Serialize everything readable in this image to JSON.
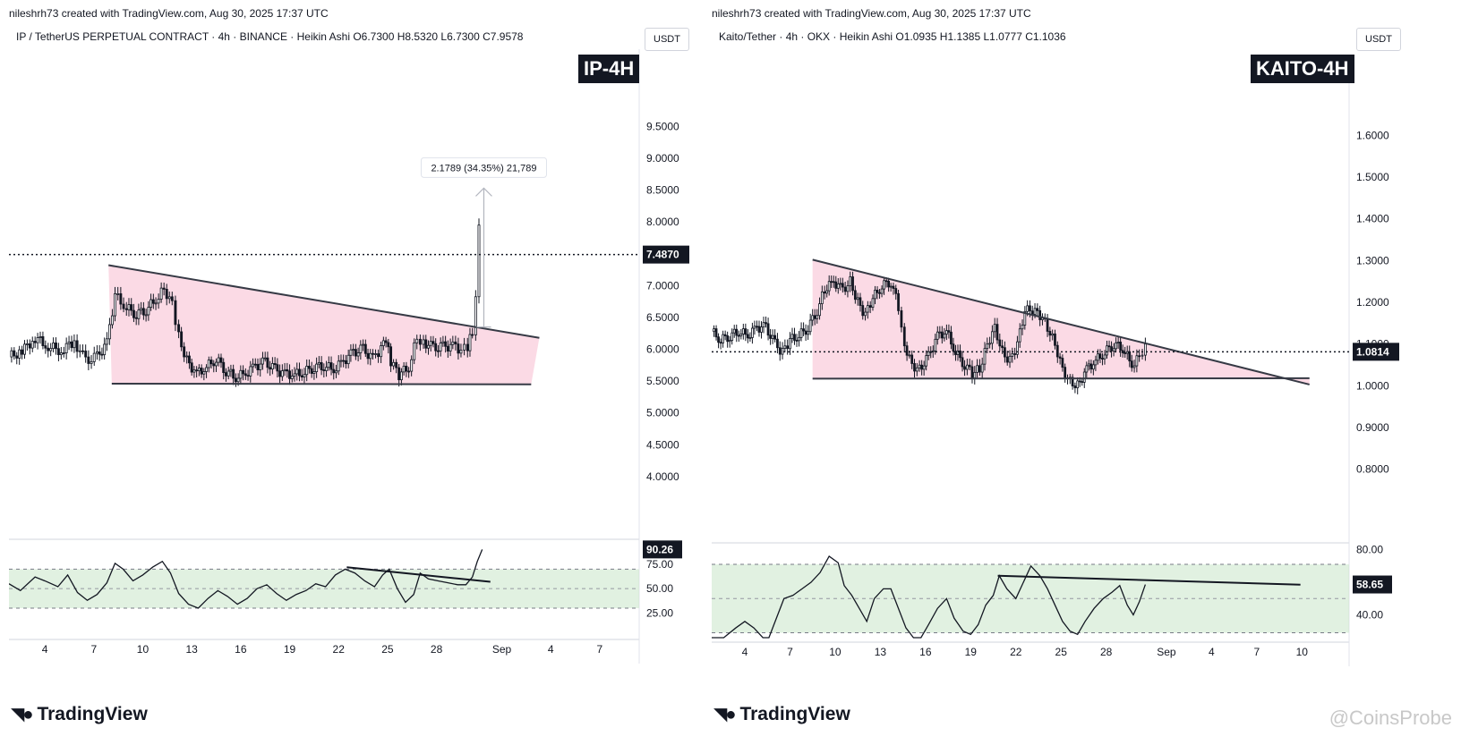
{
  "left": {
    "credit": "nileshrh73 created with TradingView.com, Aug 30, 2025 17:37 UTC",
    "legend": "IP / TetherUS PERPETUAL CONTRACT · 4h · BINANCE · Heikin Ashi  O6.7300  H8.5320  L6.7300  C7.9578",
    "currency": "USDT",
    "badge": "IP-4H",
    "logo": "TradingView"
  },
  "right": {
    "credit": "nileshrh73 created with TradingView.com, Aug 30, 2025 17:37 UTC",
    "legend": "Kaito/Tether · 4h · OKX · Heikin Ashi  O1.0935  H1.1385  L1.0777  C1.1036",
    "currency": "USDT",
    "badge": "KAITO-4H",
    "logo": "TradingView"
  },
  "watermark": "@CoinsProbe",
  "chart_data": [
    {
      "type": "candlestick",
      "symbol": "IP / TetherUS PERPETUAL CONTRACT",
      "timeframe": "4h",
      "exchange": "BINANCE",
      "candle_style": "Heikin Ashi",
      "ohlc": {
        "open": "6.7300",
        "high": "8.5320",
        "low": "6.7300",
        "close": "7.9578"
      },
      "y_ticks": [
        "9.5000",
        "9.0000",
        "8.5000",
        "8.0000",
        "7.5000",
        "7.0000",
        "6.5000",
        "6.0000",
        "5.5000",
        "5.0000",
        "4.5000",
        "4.0000"
      ],
      "y_tick_values": [
        9.5,
        9.0,
        8.5,
        8.0,
        7.5,
        7.0,
        6.5,
        6.0,
        5.5,
        5.0,
        4.5,
        4.0
      ],
      "ylim": [
        3.55,
        10.15
      ],
      "x_ticks": [
        "4",
        "7",
        "10",
        "13",
        "16",
        "19",
        "22",
        "25",
        "28",
        "Sep",
        "4",
        "7"
      ],
      "x_tick_days": [
        4,
        7,
        10,
        13,
        16,
        19,
        22,
        25,
        28,
        32,
        35,
        38
      ],
      "xlim": [
        1.8,
        40.2
      ],
      "price_line": {
        "value": 7.487,
        "label": "7.4870"
      },
      "measure": {
        "label": "2.1789 (34.35%) 21,789",
        "from": 6.35,
        "to": 8.53,
        "day": 30.9
      },
      "pattern": {
        "upper_line": [
          [
            7.9,
            7.32
          ],
          [
            34.3,
            6.18
          ]
        ],
        "lower_line": [
          [
            8.1,
            5.46
          ],
          [
            33.8,
            5.45
          ]
        ]
      },
      "price_series": [
        [
          1.8,
          5.88
        ],
        [
          2.6,
          5.97
        ],
        [
          3.4,
          6.18
        ],
        [
          4.2,
          6.05
        ],
        [
          5.0,
          5.98
        ],
        [
          5.8,
          6.12
        ],
        [
          6.5,
          5.82
        ],
        [
          7.2,
          5.88
        ],
        [
          7.8,
          6.1
        ],
        [
          8.3,
          6.85
        ],
        [
          9.0,
          6.65
        ],
        [
          9.6,
          6.55
        ],
        [
          10.2,
          6.62
        ],
        [
          10.8,
          6.78
        ],
        [
          11.3,
          6.95
        ],
        [
          11.8,
          6.72
        ],
        [
          12.2,
          6.2
        ],
        [
          12.7,
          5.82
        ],
        [
          13.3,
          5.62
        ],
        [
          13.9,
          5.72
        ],
        [
          14.5,
          5.85
        ],
        [
          15.1,
          5.66
        ],
        [
          15.7,
          5.56
        ],
        [
          16.3,
          5.62
        ],
        [
          16.9,
          5.74
        ],
        [
          17.5,
          5.8
        ],
        [
          18.1,
          5.68
        ],
        [
          18.7,
          5.62
        ],
        [
          19.3,
          5.6
        ],
        [
          19.9,
          5.64
        ],
        [
          20.5,
          5.72
        ],
        [
          21.1,
          5.74
        ],
        [
          21.7,
          5.68
        ],
        [
          22.3,
          5.82
        ],
        [
          22.9,
          5.95
        ],
        [
          23.5,
          6.0
        ],
        [
          24.1,
          5.85
        ],
        [
          24.6,
          6.02
        ],
        [
          24.9,
          6.12
        ],
        [
          25.2,
          5.8
        ],
        [
          25.7,
          5.6
        ],
        [
          26.3,
          5.72
        ],
        [
          26.8,
          6.18
        ],
        [
          27.2,
          6.12
        ],
        [
          27.8,
          6.02
        ],
        [
          28.4,
          6.04
        ],
        [
          29.0,
          6.06
        ],
        [
          29.5,
          5.98
        ],
        [
          29.9,
          6.02
        ],
        [
          30.2,
          6.3
        ],
        [
          30.4,
          6.9
        ],
        [
          30.6,
          7.95
        ]
      ],
      "indicator": {
        "labels": [
          "75.00",
          "50.00",
          "25.00"
        ],
        "levels": [
          75,
          50,
          25
        ],
        "upper_band": 70,
        "lower_band": 30,
        "ylim": [
          7,
          97
        ],
        "value_label": "90.26",
        "trendline": [
          [
            22.5,
            72
          ],
          [
            31.3,
            57
          ]
        ],
        "series": [
          [
            1.8,
            55
          ],
          [
            2.5,
            48
          ],
          [
            3.4,
            62
          ],
          [
            4.0,
            58
          ],
          [
            4.8,
            52
          ],
          [
            5.4,
            64
          ],
          [
            6.0,
            46
          ],
          [
            6.6,
            38
          ],
          [
            7.2,
            44
          ],
          [
            7.8,
            56
          ],
          [
            8.3,
            76
          ],
          [
            8.8,
            70
          ],
          [
            9.4,
            58
          ],
          [
            10.0,
            64
          ],
          [
            10.6,
            72
          ],
          [
            11.2,
            78
          ],
          [
            11.7,
            66
          ],
          [
            12.2,
            45
          ],
          [
            12.8,
            34
          ],
          [
            13.4,
            30
          ],
          [
            14.0,
            40
          ],
          [
            14.6,
            48
          ],
          [
            15.2,
            42
          ],
          [
            15.8,
            34
          ],
          [
            16.4,
            40
          ],
          [
            17.0,
            50
          ],
          [
            17.6,
            54
          ],
          [
            18.2,
            45
          ],
          [
            18.8,
            38
          ],
          [
            19.4,
            44
          ],
          [
            20.0,
            48
          ],
          [
            20.6,
            55
          ],
          [
            21.2,
            52
          ],
          [
            21.8,
            64
          ],
          [
            22.4,
            70
          ],
          [
            23.0,
            66
          ],
          [
            23.6,
            58
          ],
          [
            24.2,
            52
          ],
          [
            24.7,
            64
          ],
          [
            25.1,
            70
          ],
          [
            25.6,
            50
          ],
          [
            26.1,
            36
          ],
          [
            26.6,
            44
          ],
          [
            27.0,
            66
          ],
          [
            27.5,
            60
          ],
          [
            28.1,
            58
          ],
          [
            28.7,
            56
          ],
          [
            29.3,
            54
          ],
          [
            29.8,
            54
          ],
          [
            30.2,
            62
          ],
          [
            30.5,
            78
          ],
          [
            30.8,
            90.26
          ]
        ]
      }
    },
    {
      "type": "candlestick",
      "symbol": "Kaito/Tether",
      "timeframe": "4h",
      "exchange": "OKX",
      "candle_style": "Heikin Ashi",
      "ohlc": {
        "open": "1.0935",
        "high": "1.1385",
        "low": "1.0777",
        "close": "1.1036"
      },
      "y_ticks": [
        "1.6000",
        "1.5000",
        "1.4000",
        "1.3000",
        "1.2000",
        "1.1000",
        "1.0000",
        "0.9000",
        "0.8000"
      ],
      "y_tick_values": [
        1.6,
        1.5,
        1.4,
        1.3,
        1.2,
        1.1,
        1.0,
        0.9,
        0.8
      ],
      "ylim": [
        0.72,
        1.695
      ],
      "x_ticks": [
        "4",
        "7",
        "10",
        "13",
        "16",
        "19",
        "22",
        "25",
        "28",
        "Sep",
        "4",
        "7",
        "10"
      ],
      "x_tick_days": [
        4,
        7,
        10,
        13,
        16,
        19,
        22,
        25,
        28,
        32,
        35,
        38,
        41
      ],
      "xlim": [
        1.8,
        43.3
      ],
      "price_line": {
        "value": 1.0814,
        "label": "1.0814"
      },
      "pattern": {
        "upper_line": [
          [
            8.5,
            1.302
          ],
          [
            41.5,
            1.003
          ]
        ],
        "lower_line": [
          [
            8.5,
            1.017
          ],
          [
            41.5,
            1.018
          ]
        ]
      },
      "price_series": [
        [
          1.8,
          1.13
        ],
        [
          2.4,
          1.11
        ],
        [
          3.0,
          1.12
        ],
        [
          3.6,
          1.13
        ],
        [
          4.2,
          1.12
        ],
        [
          4.8,
          1.14
        ],
        [
          5.4,
          1.14
        ],
        [
          6.0,
          1.1
        ],
        [
          6.5,
          1.08
        ],
        [
          7.0,
          1.11
        ],
        [
          7.6,
          1.12
        ],
        [
          8.2,
          1.14
        ],
        [
          8.8,
          1.18
        ],
        [
          9.3,
          1.23
        ],
        [
          9.9,
          1.25
        ],
        [
          10.5,
          1.23
        ],
        [
          11.0,
          1.25
        ],
        [
          11.5,
          1.2
        ],
        [
          12.0,
          1.17
        ],
        [
          12.5,
          1.21
        ],
        [
          13.1,
          1.24
        ],
        [
          13.7,
          1.25
        ],
        [
          14.2,
          1.19
        ],
        [
          14.6,
          1.1
        ],
        [
          15.1,
          1.05
        ],
        [
          15.6,
          1.04
        ],
        [
          16.2,
          1.07
        ],
        [
          16.8,
          1.12
        ],
        [
          17.4,
          1.13
        ],
        [
          18.0,
          1.08
        ],
        [
          18.6,
          1.05
        ],
        [
          19.1,
          1.03
        ],
        [
          19.6,
          1.04
        ],
        [
          20.1,
          1.1
        ],
        [
          20.6,
          1.14
        ],
        [
          21.1,
          1.08
        ],
        [
          21.6,
          1.06
        ],
        [
          22.1,
          1.1
        ],
        [
          22.6,
          1.18
        ],
        [
          23.1,
          1.18
        ],
        [
          23.6,
          1.17
        ],
        [
          24.1,
          1.14
        ],
        [
          24.6,
          1.1
        ],
        [
          25.1,
          1.04
        ],
        [
          25.6,
          1.01
        ],
        [
          26.1,
          1.0
        ],
        [
          26.7,
          1.04
        ],
        [
          27.3,
          1.06
        ],
        [
          27.9,
          1.08
        ],
        [
          28.5,
          1.1
        ],
        [
          29.1,
          1.09
        ],
        [
          29.7,
          1.05
        ],
        [
          30.2,
          1.07
        ],
        [
          30.6,
          1.1
        ]
      ],
      "indicator": {
        "labels": [
          "80.00",
          "40.00"
        ],
        "levels": [
          80,
          40
        ],
        "upper_band": 71,
        "lower_band": 29,
        "midline": 50,
        "ylim": [
          26,
          82
        ],
        "value_label": "58.65",
        "trendline": [
          [
            20.8,
            64
          ],
          [
            40.9,
            58.5
          ]
        ],
        "series": [
          [
            1.8,
            22
          ],
          [
            2.6,
            26
          ],
          [
            3.4,
            32
          ],
          [
            4.0,
            36
          ],
          [
            4.6,
            32
          ],
          [
            5.2,
            26
          ],
          [
            5.6,
            22
          ],
          [
            6.1,
            38
          ],
          [
            6.6,
            50
          ],
          [
            7.2,
            52
          ],
          [
            7.8,
            56
          ],
          [
            8.4,
            60
          ],
          [
            9.0,
            66
          ],
          [
            9.6,
            76
          ],
          [
            10.2,
            72
          ],
          [
            10.6,
            58
          ],
          [
            11.1,
            52
          ],
          [
            11.6,
            44
          ],
          [
            12.1,
            36
          ],
          [
            12.6,
            50
          ],
          [
            13.2,
            56
          ],
          [
            13.7,
            56
          ],
          [
            14.2,
            44
          ],
          [
            14.7,
            32
          ],
          [
            15.2,
            26
          ],
          [
            15.7,
            24
          ],
          [
            16.2,
            34
          ],
          [
            16.8,
            44
          ],
          [
            17.4,
            50
          ],
          [
            17.9,
            38
          ],
          [
            18.5,
            30
          ],
          [
            19.0,
            28
          ],
          [
            19.5,
            34
          ],
          [
            20.0,
            46
          ],
          [
            20.5,
            52
          ],
          [
            20.9,
            64
          ],
          [
            21.4,
            56
          ],
          [
            22.0,
            50
          ],
          [
            22.6,
            62
          ],
          [
            23.0,
            70
          ],
          [
            23.6,
            64
          ],
          [
            24.1,
            56
          ],
          [
            24.6,
            46
          ],
          [
            25.1,
            36
          ],
          [
            25.6,
            30
          ],
          [
            26.1,
            28
          ],
          [
            26.6,
            36
          ],
          [
            27.2,
            44
          ],
          [
            27.8,
            50
          ],
          [
            28.4,
            54
          ],
          [
            28.9,
            58
          ],
          [
            29.4,
            46
          ],
          [
            29.8,
            40
          ],
          [
            30.2,
            48
          ],
          [
            30.6,
            58.65
          ]
        ]
      }
    }
  ]
}
